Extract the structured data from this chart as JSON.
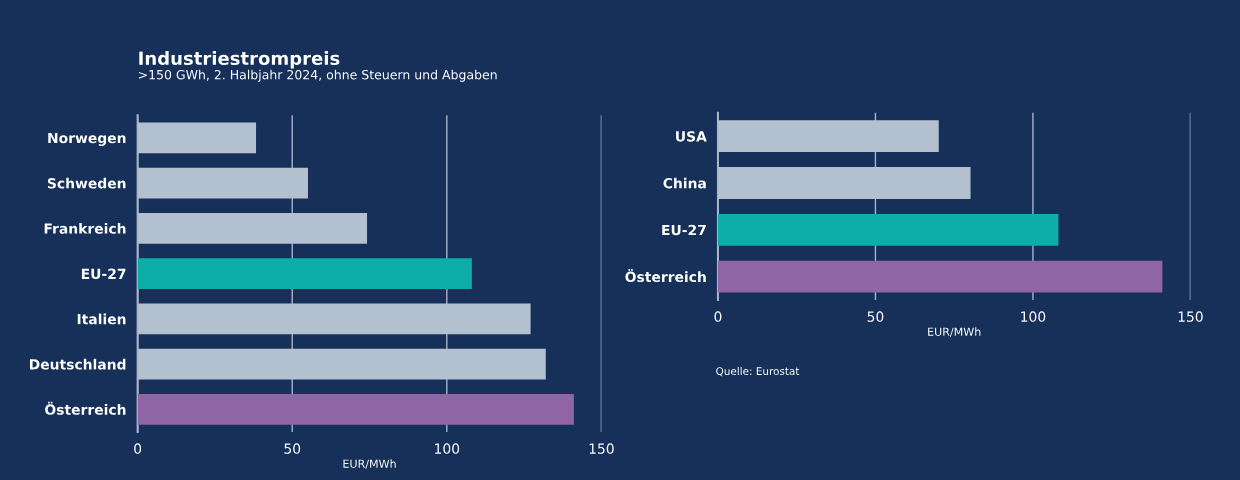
{
  "chart_data": [
    {
      "type": "bar",
      "orientation": "horizontal",
      "title": "Industriestrompreis",
      "subtitle": ">150 GWh, 2. Halbjahr 2024, ohne Steuern und Abgaben",
      "xlabel": "EUR/MWh",
      "categories": [
        "Norwegen",
        "Schweden",
        "Frankreich",
        "EU-27",
        "Italien",
        "Deutschland",
        "Österreich"
      ],
      "values": [
        38.3,
        55.1,
        74.2,
        108.1,
        127.1,
        132.0,
        141.1
      ],
      "colors": [
        "#b3c0d0",
        "#b3c0d0",
        "#b3c0d0",
        "#0daea8",
        "#b3c0d0",
        "#b3c0d0",
        "#9065a6"
      ],
      "xlim": [
        0,
        150
      ],
      "xticks": [
        0,
        50,
        100,
        150
      ],
      "grid": "x",
      "legend": false
    },
    {
      "type": "bar",
      "orientation": "horizontal",
      "xlabel": "EUR/MWh",
      "categories": [
        "USA",
        "China",
        "EU-27",
        "Österreich"
      ],
      "values": [
        70.1,
        80.2,
        108.1,
        141.1
      ],
      "colors": [
        "#b3c0d0",
        "#b3c0d0",
        "#0daea8",
        "#9065a6"
      ],
      "xlim": [
        0,
        150
      ],
      "xticks": [
        0,
        50,
        100,
        150
      ],
      "grid": "x",
      "legend": false,
      "annotations": [
        "Quelle: Eurostat"
      ]
    }
  ]
}
